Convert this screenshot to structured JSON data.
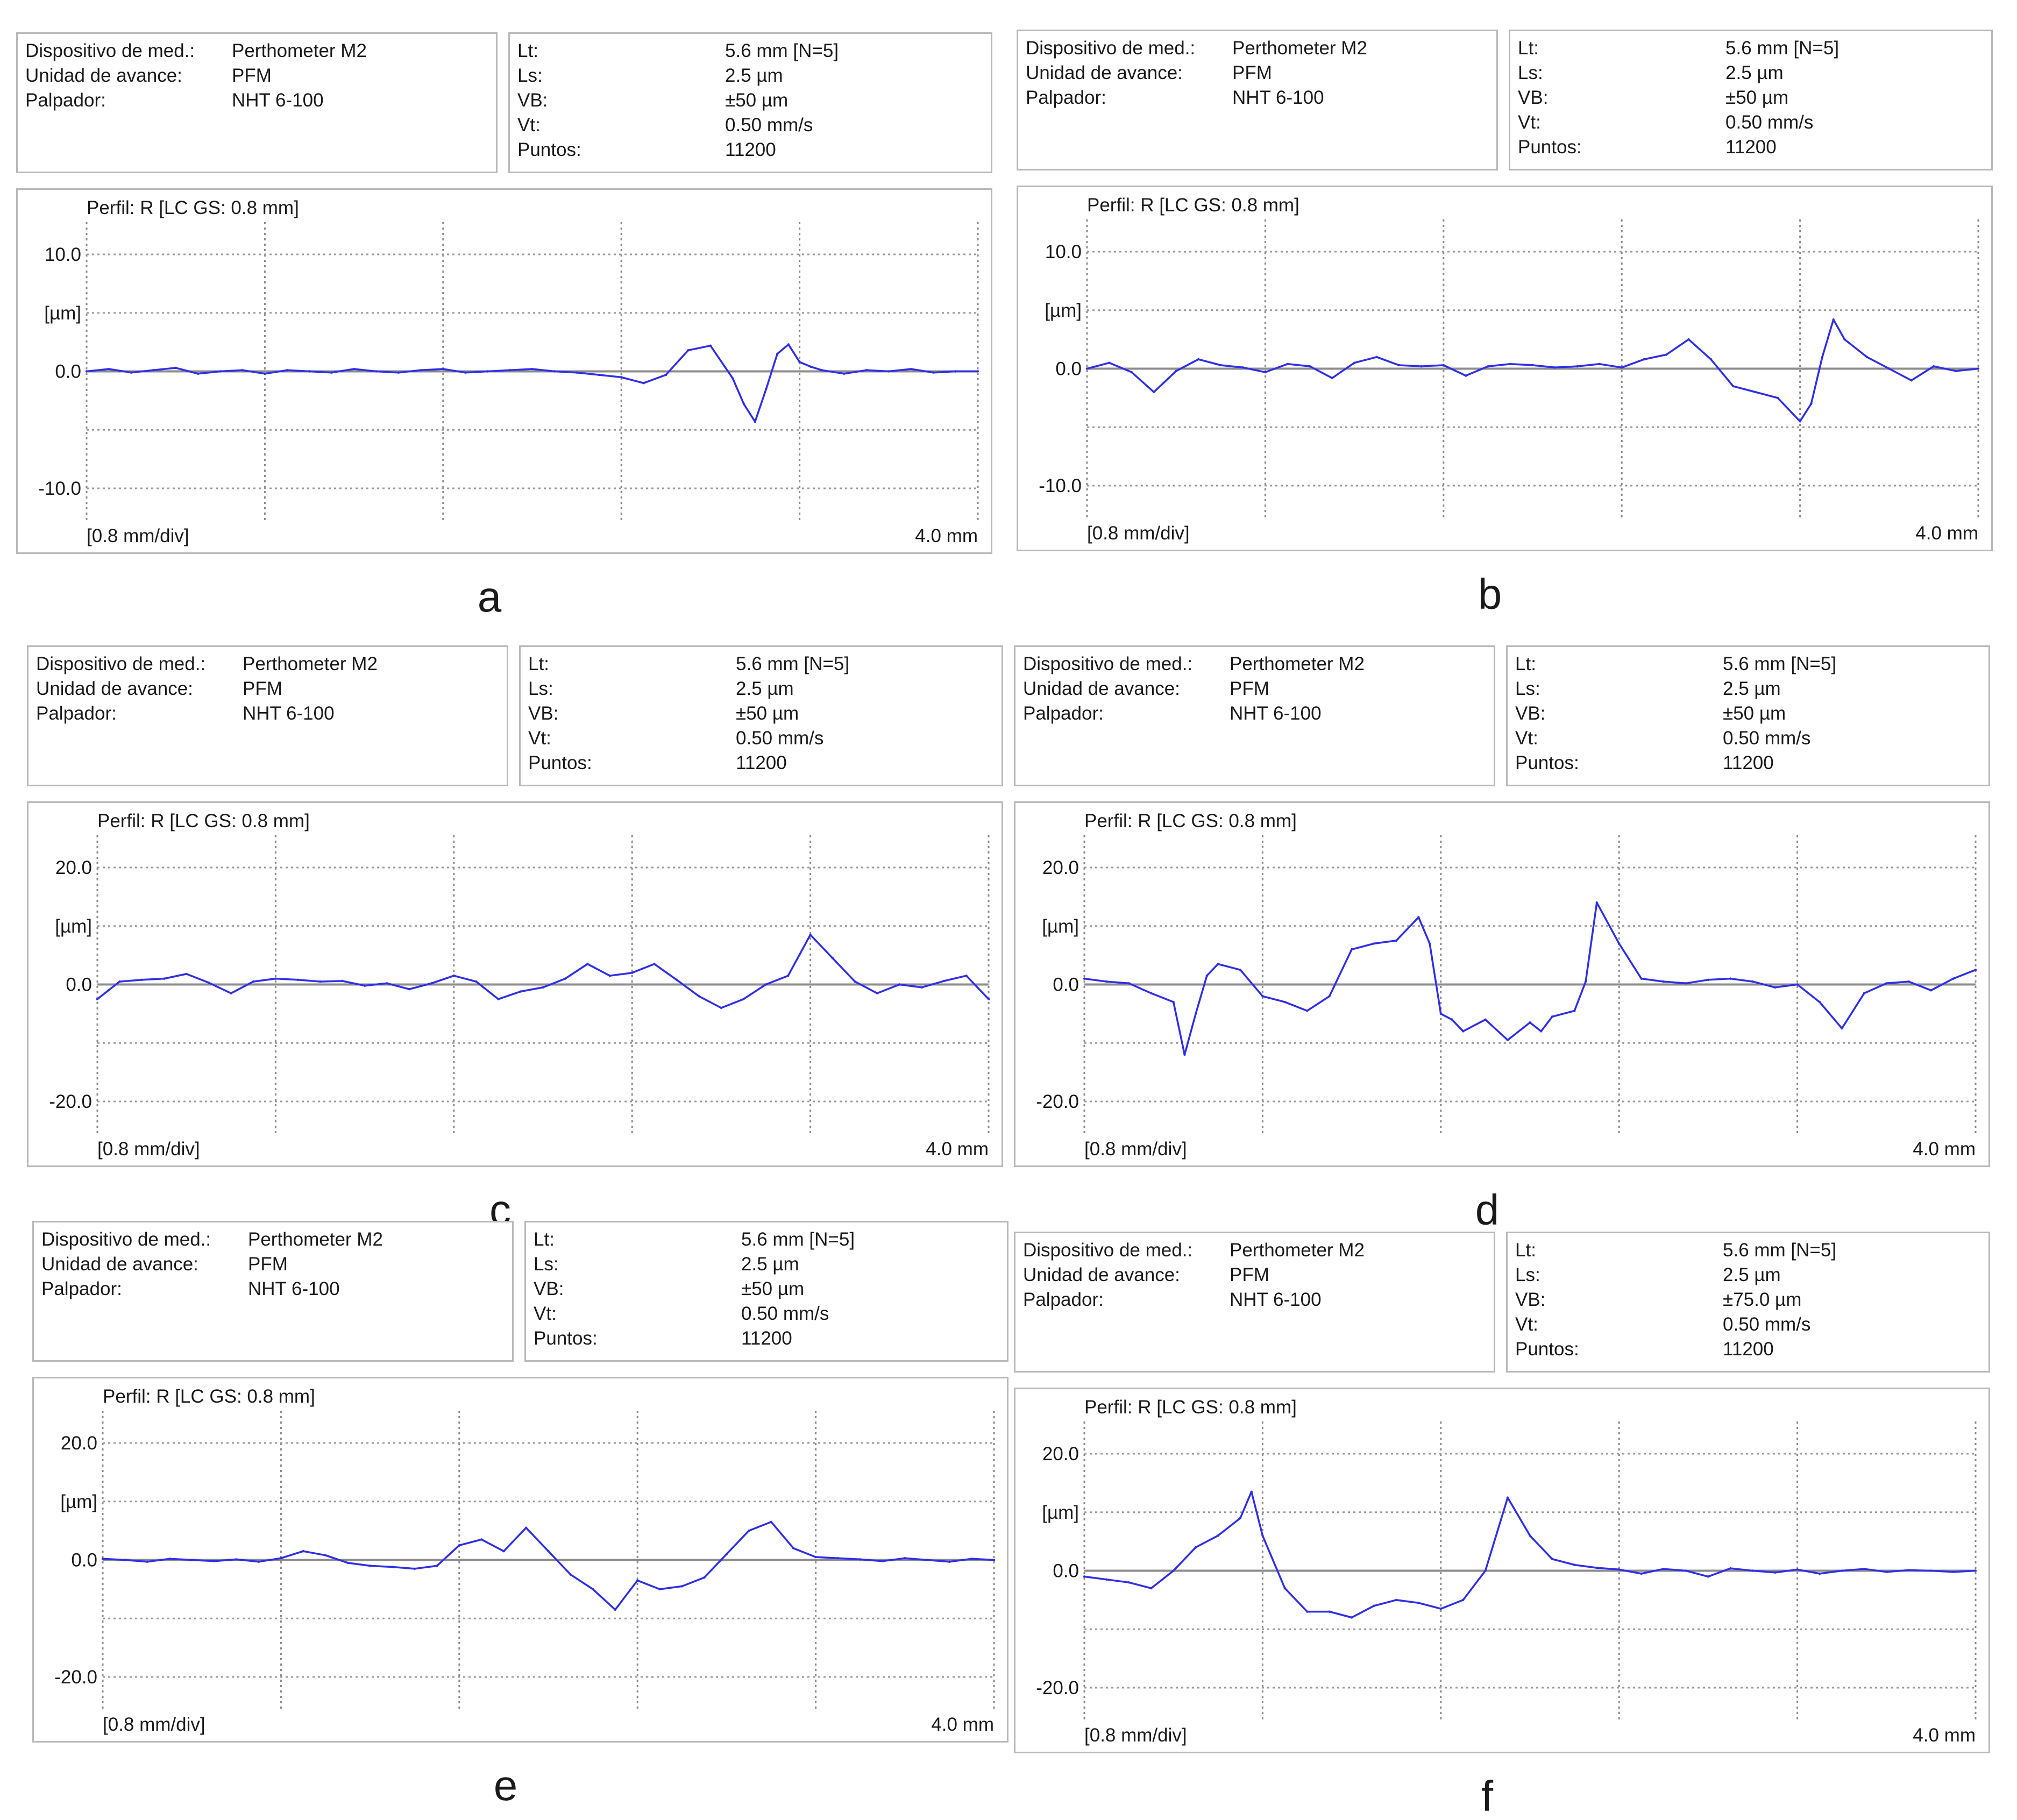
{
  "panels": [
    {
      "letter": "a",
      "info_left": [
        {
          "label": "Dispositivo de med.:",
          "value": "Perthometer M2"
        },
        {
          "label": "Unidad de avance:",
          "value": "PFM"
        },
        {
          "label": "Palpador:",
          "value": "NHT 6-100"
        }
      ],
      "info_right": [
        {
          "label": "Lt:",
          "value": "5.6 mm [N=5]"
        },
        {
          "label": "Ls:",
          "value": "2.5 µm"
        },
        {
          "label": "VB:",
          "value": "±50 µm"
        },
        {
          "label": "Vt:",
          "value": "0.50 mm/s"
        },
        {
          "label": "Puntos:",
          "value": "11200"
        }
      ]
    },
    {
      "letter": "b",
      "info_left": [
        {
          "label": "Dispositivo de med.:",
          "value": "Perthometer M2"
        },
        {
          "label": "Unidad de avance:",
          "value": "PFM"
        },
        {
          "label": "Palpador:",
          "value": "NHT 6-100"
        }
      ],
      "info_right": [
        {
          "label": "Lt:",
          "value": "5.6 mm [N=5]"
        },
        {
          "label": "Ls:",
          "value": "2.5 µm"
        },
        {
          "label": "VB:",
          "value": "±50 µm"
        },
        {
          "label": "Vt:",
          "value": "0.50 mm/s"
        },
        {
          "label": "Puntos:",
          "value": "11200"
        }
      ]
    },
    {
      "letter": "c",
      "info_left": [
        {
          "label": "Dispositivo de med.:",
          "value": "Perthometer M2"
        },
        {
          "label": "Unidad de avance:",
          "value": "PFM"
        },
        {
          "label": "Palpador:",
          "value": "NHT 6-100"
        }
      ],
      "info_right": [
        {
          "label": "Lt:",
          "value": "5.6 mm [N=5]"
        },
        {
          "label": "Ls:",
          "value": "2.5 µm"
        },
        {
          "label": "VB:",
          "value": "±50 µm"
        },
        {
          "label": "Vt:",
          "value": "0.50 mm/s"
        },
        {
          "label": "Puntos:",
          "value": "11200"
        }
      ]
    },
    {
      "letter": "d",
      "info_left": [
        {
          "label": "Dispositivo de med.:",
          "value": "Perthometer M2"
        },
        {
          "label": "Unidad de avance:",
          "value": "PFM"
        },
        {
          "label": "Palpador:",
          "value": "NHT 6-100"
        }
      ],
      "info_right": [
        {
          "label": "Lt:",
          "value": "5.6 mm [N=5]"
        },
        {
          "label": "Ls:",
          "value": "2.5 µm"
        },
        {
          "label": "VB:",
          "value": "±50 µm"
        },
        {
          "label": "Vt:",
          "value": "0.50 mm/s"
        },
        {
          "label": "Puntos:",
          "value": "11200"
        }
      ]
    },
    {
      "letter": "e",
      "info_left": [
        {
          "label": "Dispositivo de med.:",
          "value": "Perthometer M2"
        },
        {
          "label": "Unidad de avance:",
          "value": "PFM"
        },
        {
          "label": "Palpador:",
          "value": "NHT 6-100"
        }
      ],
      "info_right": [
        {
          "label": "Lt:",
          "value": "5.6 mm [N=5]"
        },
        {
          "label": "Ls:",
          "value": "2.5 µm"
        },
        {
          "label": "VB:",
          "value": "±50 µm"
        },
        {
          "label": "Vt:",
          "value": "0.50 mm/s"
        },
        {
          "label": "Puntos:",
          "value": "11200"
        }
      ]
    },
    {
      "letter": "f",
      "info_left": [
        {
          "label": "Dispositivo de med.:",
          "value": "Perthometer M2"
        },
        {
          "label": "Unidad de avance:",
          "value": "PFM"
        },
        {
          "label": "Palpador:",
          "value": "NHT 6-100"
        }
      ],
      "info_right": [
        {
          "label": "Lt:",
          "value": "5.6 mm [N=5]"
        },
        {
          "label": "Ls:",
          "value": "2.5 µm"
        },
        {
          "label": "VB:",
          "value": "±75.0 µm"
        },
        {
          "label": "Vt:",
          "value": "0.50 mm/s"
        },
        {
          "label": "Puntos:",
          "value": "11200"
        }
      ]
    }
  ],
  "chart_data": [
    {
      "type": "line",
      "title": "Perfil: R [LC GS: 0.8 mm]",
      "ylabel": "[µm]",
      "x_scale_label": "[0.8 mm/div]",
      "x_end_label": "4.0 mm",
      "xlim": [
        0,
        4.0
      ],
      "ylim": [
        -10,
        10
      ],
      "yticks": [
        10.0,
        0.0,
        -10.0
      ],
      "ytick_labels": [
        "10.0",
        "0.0",
        "-10.0"
      ],
      "grid": true,
      "color": "#2f2fe6",
      "series": [
        {
          "x": [
            0,
            0.1,
            0.2,
            0.3,
            0.4,
            0.5,
            0.6,
            0.7,
            0.8,
            0.9,
            1.0,
            1.1,
            1.2,
            1.3,
            1.4,
            1.5,
            1.6,
            1.7,
            1.8,
            1.9,
            2.0,
            2.1,
            2.2,
            2.3,
            2.4,
            2.5,
            2.6,
            2.7,
            2.8,
            2.9,
            2.95,
            3.0,
            3.05,
            3.1,
            3.15,
            3.2,
            3.25,
            3.3,
            3.4,
            3.5,
            3.6,
            3.7,
            3.8,
            3.9,
            4.0
          ],
          "y": [
            0,
            0.2,
            -0.1,
            0.1,
            0.3,
            -0.2,
            0,
            0.1,
            -0.2,
            0.1,
            0,
            -0.1,
            0.2,
            0,
            -0.1,
            0.1,
            0.2,
            -0.1,
            0,
            0.1,
            0.2,
            0,
            -0.1,
            -0.3,
            -0.5,
            -1.0,
            -0.3,
            1.8,
            2.2,
            -0.6,
            -2.8,
            -4.3,
            -1.5,
            1.5,
            2.3,
            0.8,
            0.4,
            0.1,
            -0.2,
            0.1,
            0,
            0.2,
            -0.1,
            0,
            0
          ]
        }
      ]
    },
    {
      "type": "line",
      "title": "Perfil: R [LC GS: 0.8 mm]",
      "ylabel": "[µm]",
      "x_scale_label": "[0.8 mm/div]",
      "x_end_label": "4.0 mm",
      "xlim": [
        0,
        4.0
      ],
      "ylim": [
        -10,
        10
      ],
      "yticks": [
        10.0,
        0.0,
        -10.0
      ],
      "ytick_labels": [
        "10.0",
        "0.0",
        "-10.0"
      ],
      "grid": true,
      "color": "#2f2fe6",
      "series": [
        {
          "x": [
            0,
            0.1,
            0.2,
            0.3,
            0.4,
            0.5,
            0.6,
            0.7,
            0.8,
            0.9,
            1.0,
            1.1,
            1.2,
            1.3,
            1.4,
            1.5,
            1.6,
            1.7,
            1.8,
            1.9,
            2.0,
            2.1,
            2.2,
            2.3,
            2.4,
            2.5,
            2.6,
            2.7,
            2.8,
            2.9,
            3.0,
            3.1,
            3.2,
            3.25,
            3.3,
            3.35,
            3.4,
            3.5,
            3.6,
            3.7,
            3.8,
            3.9,
            4.0
          ],
          "y": [
            0,
            0.5,
            -0.3,
            -2.0,
            -0.2,
            0.8,
            0.3,
            0.1,
            -0.3,
            0.4,
            0.2,
            -0.8,
            0.5,
            1.0,
            0.3,
            0.2,
            0.3,
            -0.6,
            0.2,
            0.4,
            0.3,
            0.1,
            0.2,
            0.4,
            0.1,
            0.8,
            1.2,
            2.5,
            0.8,
            -1.5,
            -2.0,
            -2.5,
            -4.5,
            -3.0,
            1.0,
            4.2,
            2.5,
            1.0,
            0,
            -1.0,
            0.2,
            -0.2,
            0
          ]
        }
      ]
    },
    {
      "type": "line",
      "title": "Perfil: R [LC GS: 0.8 mm]",
      "ylabel": "[µm]",
      "x_scale_label": "[0.8 mm/div]",
      "x_end_label": "4.0 mm",
      "xlim": [
        0,
        4.0
      ],
      "ylim": [
        -20,
        20
      ],
      "yticks": [
        20.0,
        0.0,
        -20.0
      ],
      "ytick_labels": [
        "20.0",
        "0.0",
        "-20.0"
      ],
      "grid": true,
      "color": "#2f2fe6",
      "series": [
        {
          "x": [
            0,
            0.05,
            0.1,
            0.2,
            0.3,
            0.4,
            0.5,
            0.6,
            0.7,
            0.8,
            0.9,
            1.0,
            1.1,
            1.2,
            1.3,
            1.4,
            1.5,
            1.6,
            1.7,
            1.8,
            1.9,
            2.0,
            2.1,
            2.2,
            2.3,
            2.4,
            2.5,
            2.6,
            2.7,
            2.8,
            2.9,
            3.0,
            3.1,
            3.2,
            3.3,
            3.4,
            3.5,
            3.6,
            3.7,
            3.8,
            3.9,
            4.0
          ],
          "y": [
            -2.5,
            -1.0,
            0.5,
            0.8,
            1.0,
            1.8,
            0.3,
            -1.5,
            0.5,
            1.0,
            0.8,
            0.5,
            0.6,
            -0.2,
            0.2,
            -0.8,
            0.2,
            1.5,
            0.5,
            -2.5,
            -1.2,
            -0.5,
            1.0,
            3.5,
            1.5,
            2.0,
            3.5,
            0.8,
            -2.0,
            -4.0,
            -2.5,
            0,
            1.5,
            8.5,
            4.5,
            0.5,
            -1.5,
            0,
            -0.5,
            0.6,
            1.5,
            -2.5
          ]
        }
      ]
    },
    {
      "type": "line",
      "title": "Perfil: R [LC GS: 0.8 mm]",
      "ylabel": "[µm]",
      "x_scale_label": "[0.8 mm/div]",
      "x_end_label": "4.0 mm",
      "xlim": [
        0,
        4.0
      ],
      "ylim": [
        -20,
        20
      ],
      "yticks": [
        20.0,
        0.0,
        -20.0
      ],
      "ytick_labels": [
        "20.0",
        "0.0",
        "-20.0"
      ],
      "grid": true,
      "color": "#2f2fe6",
      "series": [
        {
          "x": [
            0,
            0.1,
            0.2,
            0.3,
            0.4,
            0.45,
            0.5,
            0.55,
            0.6,
            0.7,
            0.8,
            0.9,
            1.0,
            1.1,
            1.2,
            1.3,
            1.4,
            1.5,
            1.55,
            1.6,
            1.65,
            1.7,
            1.8,
            1.9,
            2.0,
            2.05,
            2.1,
            2.2,
            2.25,
            2.3,
            2.4,
            2.5,
            2.6,
            2.7,
            2.8,
            2.9,
            3.0,
            3.1,
            3.2,
            3.3,
            3.4,
            3.5,
            3.6,
            3.7,
            3.8,
            3.9,
            4.0
          ],
          "y": [
            1.0,
            0.5,
            0.2,
            -1.5,
            -3.0,
            -12.0,
            -5.0,
            1.5,
            3.5,
            2.5,
            -2.0,
            -3.0,
            -4.5,
            -2.0,
            6.0,
            7.0,
            7.5,
            11.5,
            7.0,
            -5.0,
            -6.0,
            -8.0,
            -6.0,
            -9.5,
            -6.5,
            -8.0,
            -5.5,
            -4.5,
            0.5,
            14.0,
            7.0,
            1.0,
            0.5,
            0.2,
            0.8,
            1.0,
            0.5,
            -0.5,
            0,
            -3.0,
            -7.5,
            -1.5,
            0.2,
            0.5,
            -1.0,
            1.0,
            2.5
          ]
        }
      ]
    },
    {
      "type": "line",
      "title": "Perfil: R [LC GS: 0.8 mm]",
      "ylabel": "[µm]",
      "x_scale_label": "[0.8 mm/div]",
      "x_end_label": "4.0 mm",
      "xlim": [
        0,
        4.0
      ],
      "ylim": [
        -20,
        20
      ],
      "yticks": [
        20.0,
        0.0,
        -20.0
      ],
      "ytick_labels": [
        "20.0",
        "0.0",
        "-20.0"
      ],
      "grid": true,
      "color": "#2f2fe6",
      "series": [
        {
          "x": [
            0,
            0.1,
            0.2,
            0.3,
            0.4,
            0.5,
            0.6,
            0.7,
            0.8,
            0.9,
            1.0,
            1.1,
            1.2,
            1.3,
            1.4,
            1.5,
            1.6,
            1.7,
            1.8,
            1.9,
            2.0,
            2.1,
            2.2,
            2.3,
            2.4,
            2.5,
            2.6,
            2.7,
            2.8,
            2.9,
            3.0,
            3.1,
            3.2,
            3.3,
            3.4,
            3.5,
            3.6,
            3.7,
            3.8,
            3.9,
            4.0
          ],
          "y": [
            0.2,
            0,
            -0.3,
            0.2,
            0,
            -0.2,
            0.1,
            -0.3,
            0.3,
            1.5,
            0.8,
            -0.5,
            -1.0,
            -1.2,
            -1.5,
            -1.0,
            2.5,
            3.5,
            1.5,
            5.5,
            1.5,
            -2.5,
            -5.0,
            -8.5,
            -3.5,
            -5.0,
            -4.5,
            -3.0,
            1.0,
            5.0,
            6.5,
            2.0,
            0.5,
            0.3,
            0.1,
            -0.2,
            0.3,
            0,
            -0.3,
            0.2,
            0
          ]
        }
      ]
    },
    {
      "type": "line",
      "title": "Perfil: R [LC GS: 0.8 mm]",
      "ylabel": "[µm]",
      "x_scale_label": "[0.8 mm/div]",
      "x_end_label": "4.0 mm",
      "xlim": [
        0,
        4.0
      ],
      "ylim": [
        -20,
        20
      ],
      "yticks": [
        20.0,
        0.0,
        -20.0
      ],
      "ytick_labels": [
        "20.0",
        "0.0",
        "-20.0"
      ],
      "grid": true,
      "color": "#2f2fe6",
      "series": [
        {
          "x": [
            0,
            0.1,
            0.2,
            0.3,
            0.4,
            0.5,
            0.6,
            0.7,
            0.75,
            0.8,
            0.9,
            1.0,
            1.1,
            1.2,
            1.3,
            1.4,
            1.5,
            1.6,
            1.7,
            1.8,
            1.9,
            2.0,
            2.1,
            2.2,
            2.3,
            2.4,
            2.5,
            2.6,
            2.7,
            2.8,
            2.9,
            3.0,
            3.1,
            3.2,
            3.3,
            3.4,
            3.5,
            3.6,
            3.7,
            3.8,
            3.9,
            4.0
          ],
          "y": [
            -1.0,
            -1.5,
            -2.0,
            -3.0,
            0,
            4.0,
            6.0,
            9.0,
            13.5,
            6.0,
            -3.0,
            -7.0,
            -7.0,
            -8.0,
            -6.0,
            -5.0,
            -5.5,
            -6.5,
            -5.0,
            0,
            12.5,
            6.0,
            2.0,
            1.0,
            0.5,
            0.2,
            -0.5,
            0.3,
            0,
            -1.0,
            0.4,
            0,
            -0.3,
            0.2,
            -0.5,
            0,
            0.3,
            -0.2,
            0.1,
            0,
            -0.2,
            0
          ]
        }
      ]
    }
  ]
}
